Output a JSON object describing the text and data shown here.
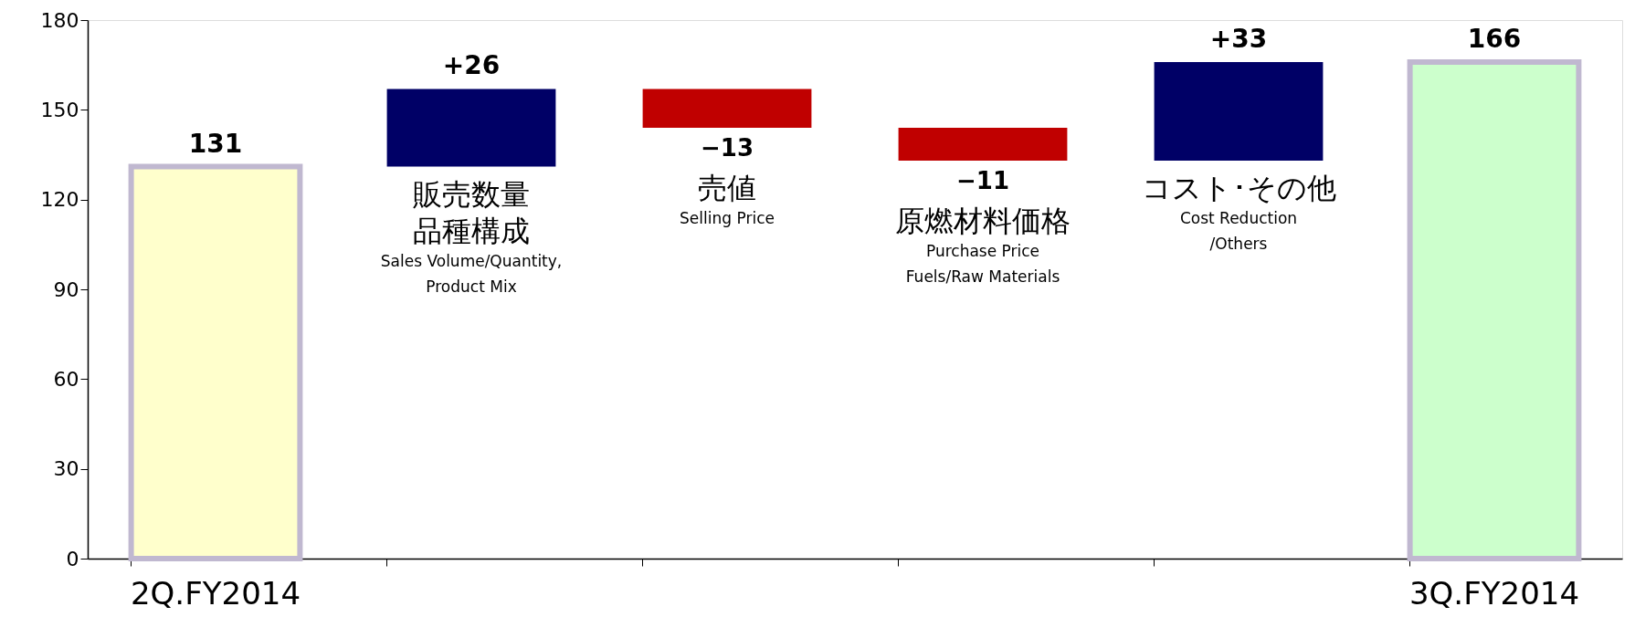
{
  "chart_data": {
    "type": "bar",
    "categories": [
      "2Q.FY2014",
      "販売数量品種構成\nSales Volume/Quantity,\nProduct Mix",
      "売値\nSelling Price",
      "原燃材料価格\nPurchase Price\nFuels/Raw Materials",
      "コスト･その他\nCost Reduction\n/Others",
      "3Q.FY2014"
    ],
    "values": [
      131,
      26,
      -13,
      -11,
      33,
      166
    ],
    "base": [
      null,
      131,
      157,
      144,
      133,
      null
    ],
    "colors": [
      "#ffffcc",
      "#000066",
      "#c00000",
      "#c00000",
      "#000066",
      "#ccffcc"
    ],
    "value_labels": [
      "131",
      "+26",
      "−13",
      "−11",
      "+33",
      "166"
    ],
    "ylim": [
      0,
      180
    ],
    "yticks": [
      0,
      30,
      60,
      90,
      120,
      150,
      180
    ],
    "grid": false
  }
}
